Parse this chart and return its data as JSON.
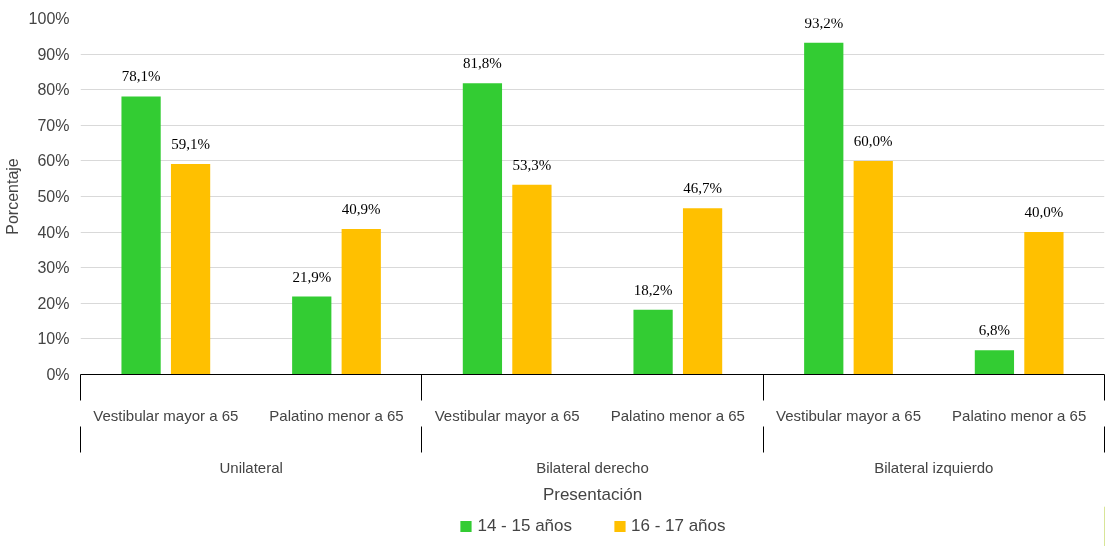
{
  "chart_data": {
    "type": "bar",
    "xlabel": "Presentación",
    "ylabel": "Porcentaje",
    "categories": [
      "Vestibular mayor a 65",
      "Palatino menor a 65",
      "Vestibular mayor a 65",
      "Palatino menor a 65",
      "Vestibular mayor a 65",
      "Palatino menor a 65"
    ],
    "series": [
      {
        "name": "14 - 15 años",
        "color": "#33cc33",
        "values": [
          78.1,
          21.9,
          81.8,
          18.2,
          93.2,
          6.8
        ],
        "value_labels": [
          "78,1%",
          "21,9%",
          "81,8%",
          "18,2%",
          "93,2%",
          "6,8%"
        ]
      },
      {
        "name": "16 - 17 años",
        "color": "#ffc000",
        "values": [
          59.1,
          40.9,
          53.3,
          46.7,
          60.0,
          40.0
        ],
        "value_labels": [
          "59,1%",
          "40,9%",
          "53,3%",
          "46,7%",
          "60,0%",
          "40,0%"
        ]
      }
    ],
    "annotations": [
      "Unilateral",
      "Bilateral derecho",
      "Bilateral izquierdo"
    ],
    "ylim": [
      0,
      100
    ],
    "yticks": [
      {
        "value": 0,
        "label": "0%"
      },
      {
        "value": 10,
        "label": "10%"
      },
      {
        "value": 20,
        "label": "20%"
      },
      {
        "value": 30,
        "label": "30%"
      },
      {
        "value": 40,
        "label": "40%"
      },
      {
        "value": 50,
        "label": "50%"
      },
      {
        "value": 60,
        "label": "60%"
      },
      {
        "value": 70,
        "label": "70%"
      },
      {
        "value": 80,
        "label": "80%"
      },
      {
        "value": 90,
        "label": "90%"
      },
      {
        "value": 100,
        "label": "100%"
      }
    ],
    "grid": "y",
    "legend": "bottom"
  }
}
